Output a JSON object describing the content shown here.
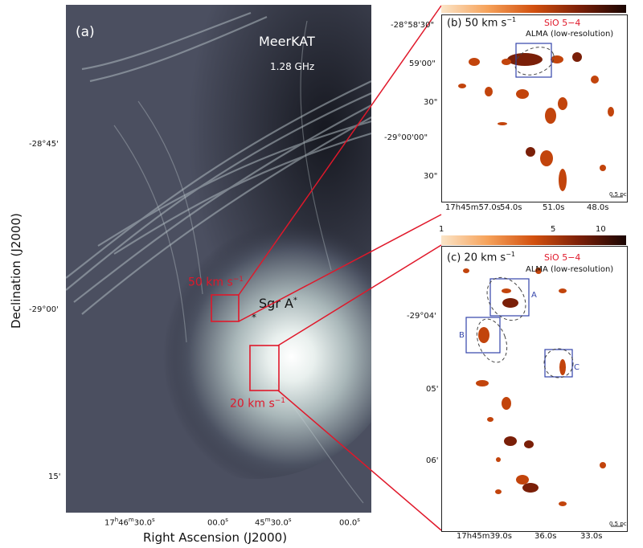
{
  "panel_a": {
    "label": "(a)",
    "telescope": "MeerKAT",
    "frequency": "1.28 GHz",
    "source_label": "Sgr A",
    "source_sup": "*",
    "box_50_label": "50 km s",
    "box_20_label": "20 km s",
    "unit_sup": "−1",
    "xlabel": "Right Ascension (J2000)",
    "ylabel": "Declination (J2000)",
    "xticks": [
      "17h46m30.0s",
      "00.0s",
      "45m30.0s",
      "00.0s"
    ],
    "xticks_parts": [
      {
        "main": "17",
        "s1": "h",
        "a": "46",
        "s2": "m",
        "b": "30.0",
        "s3": "s"
      },
      {
        "main": "00.0",
        "s3": "s"
      },
      {
        "main": "45",
        "s2": "m",
        "b": "30.0",
        "s3": "s"
      },
      {
        "main": "00.0",
        "s3": "s"
      }
    ],
    "yticks": [
      "-28°45'",
      "-29°00'",
      "15'"
    ]
  },
  "panel_b": {
    "label": "(b) 50 km s",
    "unit_sup": "−1",
    "line": "SiO 5−4",
    "note": "ALMA (low-resolution)",
    "scalebar": "0.5 pc",
    "yticks": [
      "-28°58'30\"",
      "59'00\"",
      "30\"",
      "-29°00'00\"",
      "30\""
    ],
    "xticks": [
      "17h45m57.0s",
      "54.0s",
      "51.0s",
      "48.0s"
    ]
  },
  "panel_c": {
    "label": "(c) 20 km s",
    "unit_sup": "−1",
    "line": "SiO 5−4",
    "note": "ALMA (low-resolution)",
    "colorbar_ticks": [
      "1",
      "5",
      "10"
    ],
    "box_labels": [
      "A",
      "B",
      "C"
    ],
    "scalebar": "0.5 pc",
    "yticks": [
      "-29°04'",
      "05'",
      "06'"
    ],
    "xticks": [
      "17h45m39.0s",
      "36.0s",
      "33.0s"
    ]
  },
  "colors": {
    "background_dark": "#2a2d3a",
    "emission_bright": "#e8eef0",
    "accent_red": "#e0182a",
    "box_blue": "#3344aa",
    "sio_orange": "#d2500f"
  }
}
